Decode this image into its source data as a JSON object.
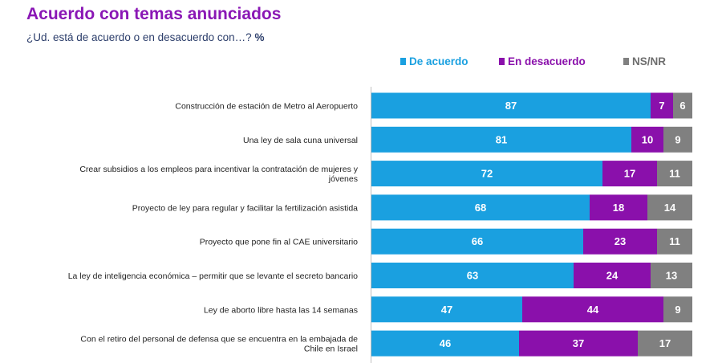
{
  "title": "Acuerdo con temas anunciados",
  "subtitle": "¿Ud. está de acuerdo o en desacuerdo con…?",
  "subtitle_unit": "%",
  "colors": {
    "title": "#8a17b5",
    "de_acuerdo": "#1aa0e0",
    "en_desacuerdo": "#8a10ab",
    "ns_nr": "#808080",
    "de_acuerdo_text": "#1aa0e0",
    "en_desacuerdo_text": "#8a10ab",
    "ns_nr_text": "#6e6e6e"
  },
  "legend": {
    "placement": "top-right",
    "items": [
      "De acuerdo",
      "En desacuerdo",
      "NS/NR"
    ]
  },
  "chart_data": {
    "type": "bar",
    "orientation": "horizontal",
    "stacked": true,
    "unit": "%",
    "xlim": [
      0,
      100
    ],
    "categories": [
      [
        "Construcción de estación de Metro al Aeropuerto"
      ],
      [
        "Una ley de sala cuna universal"
      ],
      [
        "Crear subsidios a los empleos para incentivar la contratación de mujeres y",
        "jóvenes"
      ],
      [
        "Proyecto de ley para regular y facilitar la fertilización asistida"
      ],
      [
        "Proyecto que pone fin al CAE universitario"
      ],
      [
        "La ley de inteligencia económica – permitir que se levante el secreto bancario"
      ],
      [
        "Ley de aborto libre hasta las 14 semanas"
      ],
      [
        "Con el retiro del personal de defensa que se encuentra en la embajada de",
        "Chile en Israel"
      ]
    ],
    "series": [
      {
        "name": "De acuerdo",
        "values": [
          87,
          81,
          72,
          68,
          66,
          63,
          47,
          46
        ]
      },
      {
        "name": "En desacuerdo",
        "values": [
          7,
          10,
          17,
          18,
          23,
          24,
          44,
          37
        ]
      },
      {
        "name": "NS/NR",
        "values": [
          6,
          9,
          11,
          14,
          11,
          13,
          9,
          17
        ]
      }
    ]
  }
}
